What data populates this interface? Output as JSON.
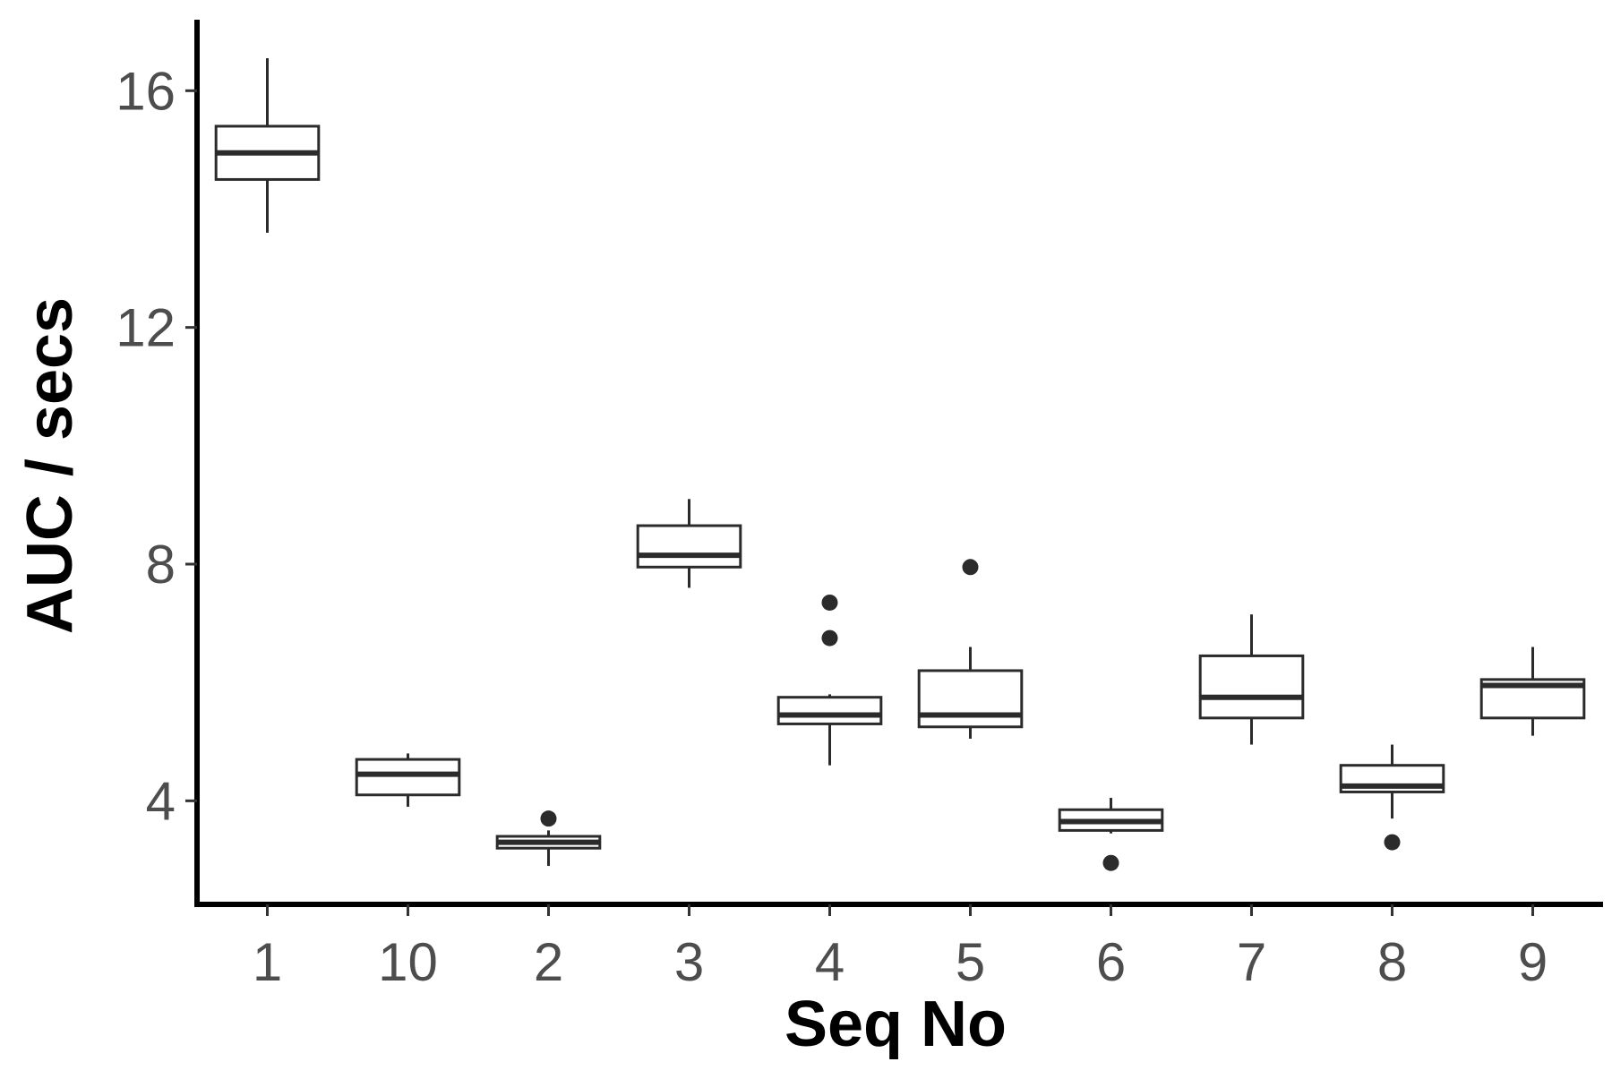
{
  "chart_data": {
    "type": "box",
    "title": "",
    "xlabel": "Seq No",
    "ylabel": "AUC / secs",
    "ylim": [
      2.25,
      17.2
    ],
    "yticks": [
      4,
      8,
      12,
      16
    ],
    "ytick_labels": [
      "4",
      "8",
      "12",
      "16"
    ],
    "grid": false,
    "legend": "none",
    "colors": {
      "axis": "#000000",
      "box_stroke": "#2b2b2b",
      "box_fill": "#ffffff",
      "tick_text": "#4d4d4d"
    },
    "categories": [
      "1",
      "10",
      "2",
      "3",
      "4",
      "5",
      "6",
      "7",
      "8",
      "9"
    ],
    "boxes": [
      {
        "category": "1",
        "whisker_low": 13.6,
        "q1": 14.5,
        "median": 14.95,
        "q3": 15.4,
        "whisker_high": 16.55,
        "outliers": []
      },
      {
        "category": "10",
        "whisker_low": 3.9,
        "q1": 4.1,
        "median": 4.45,
        "q3": 4.7,
        "whisker_high": 4.8,
        "outliers": []
      },
      {
        "category": "2",
        "whisker_low": 2.9,
        "q1": 3.2,
        "median": 3.3,
        "q3": 3.4,
        "whisker_high": 3.5,
        "outliers": [
          3.7
        ]
      },
      {
        "category": "3",
        "whisker_low": 7.6,
        "q1": 7.95,
        "median": 8.15,
        "q3": 8.65,
        "whisker_high": 9.1,
        "outliers": []
      },
      {
        "category": "4",
        "whisker_low": 4.6,
        "q1": 5.3,
        "median": 5.45,
        "q3": 5.75,
        "whisker_high": 5.8,
        "outliers": [
          7.35,
          6.75
        ]
      },
      {
        "category": "5",
        "whisker_low": 5.05,
        "q1": 5.25,
        "median": 5.45,
        "q3": 6.2,
        "whisker_high": 6.6,
        "outliers": [
          7.95
        ]
      },
      {
        "category": "6",
        "whisker_low": 3.45,
        "q1": 3.5,
        "median": 3.65,
        "q3": 3.85,
        "whisker_high": 4.05,
        "outliers": [
          2.95
        ]
      },
      {
        "category": "7",
        "whisker_low": 4.95,
        "q1": 5.4,
        "median": 5.75,
        "q3": 6.45,
        "whisker_high": 7.15,
        "outliers": []
      },
      {
        "category": "8",
        "whisker_low": 3.7,
        "q1": 4.15,
        "median": 4.25,
        "q3": 4.6,
        "whisker_high": 4.95,
        "outliers": [
          3.3
        ]
      },
      {
        "category": "9",
        "whisker_low": 5.1,
        "q1": 5.4,
        "median": 5.95,
        "q3": 6.05,
        "whisker_high": 6.6,
        "outliers": []
      }
    ]
  }
}
